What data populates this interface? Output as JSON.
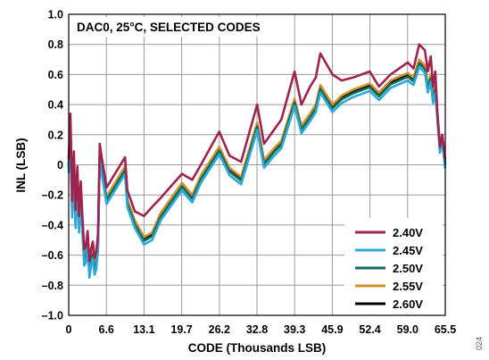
{
  "chart_data": {
    "type": "line",
    "annotation": "DAC0, 25°C, SELECTED CODES",
    "xlabel": "CODE (Thousands LSB)",
    "ylabel": "INL (LSB)",
    "figure_id": "024",
    "xlim": [
      0,
      65.535
    ],
    "ylim": [
      -1.0,
      1.0
    ],
    "grid": true,
    "legend_position": "lower-right",
    "x_ticks": [
      {
        "value": 0,
        "label": "0"
      },
      {
        "value": 6.5535,
        "label": "6.6"
      },
      {
        "value": 13.107,
        "label": "13.1"
      },
      {
        "value": 19.6605,
        "label": "19.7"
      },
      {
        "value": 26.214,
        "label": "26.2"
      },
      {
        "value": 32.7675,
        "label": "32.8"
      },
      {
        "value": 39.321,
        "label": "39.3"
      },
      {
        "value": 45.8745,
        "label": "45.9"
      },
      {
        "value": 52.428,
        "label": "52.4"
      },
      {
        "value": 58.9815,
        "label": "59.0"
      },
      {
        "value": 65.535,
        "label": "65.5"
      }
    ],
    "y_ticks": [
      {
        "value": 1.0,
        "label": "1.0"
      },
      {
        "value": 0.8,
        "label": "0.8"
      },
      {
        "value": 0.6,
        "label": "0.6"
      },
      {
        "value": 0.4,
        "label": "0.4"
      },
      {
        "value": 0.2,
        "label": "0.2"
      },
      {
        "value": 0,
        "label": "0"
      },
      {
        "value": -0.2,
        "label": "–0.2"
      },
      {
        "value": -0.4,
        "label": "–0.4"
      },
      {
        "value": -0.6,
        "label": "–0.6"
      },
      {
        "value": -0.8,
        "label": "–0.8"
      },
      {
        "value": -1.0,
        "label": "–1.0"
      }
    ],
    "series": [
      {
        "name": "2.60V",
        "color": "#000000",
        "offset": -0.03,
        "x": [
          0,
          0.3,
          0.6,
          0.9,
          1.2,
          1.5,
          1.8,
          2.1,
          2.4,
          2.7,
          3.0,
          3.3,
          3.6,
          3.9,
          4.2,
          4.5,
          4.8,
          5.1,
          5.4,
          5.7,
          6.0,
          6.6,
          9.8,
          10.2,
          11.5,
          13.1,
          14.5,
          16.0,
          19.7,
          21.5,
          23.0,
          26.2,
          28.0,
          30.0,
          32.8,
          34.0,
          35.5,
          37.0,
          39.3,
          40.5,
          42.0,
          43.0,
          43.8,
          45.9,
          47.5,
          49.5,
          52.4,
          54.0,
          56.0,
          59.0,
          60.0,
          61.0,
          62.0,
          62.5,
          63.0,
          63.4,
          63.8,
          64.2,
          64.6,
          65.0,
          65.5
        ],
        "y": [
          0.02,
          0.3,
          -0.28,
          0.05,
          -0.35,
          -0.05,
          -0.38,
          -0.15,
          -0.4,
          -0.6,
          -0.58,
          -0.48,
          -0.68,
          -0.6,
          -0.55,
          -0.66,
          -0.62,
          -0.5,
          0.1,
          0.02,
          -0.05,
          -0.19,
          0.01,
          -0.21,
          -0.35,
          -0.46,
          -0.43,
          -0.3,
          -0.1,
          -0.18,
          -0.05,
          0.14,
          0.0,
          -0.06,
          0.3,
          0.05,
          0.12,
          0.18,
          0.46,
          0.28,
          0.36,
          0.42,
          0.55,
          0.42,
          0.48,
          0.52,
          0.56,
          0.5,
          0.58,
          0.63,
          0.6,
          0.72,
          0.68,
          0.55,
          0.62,
          0.48,
          0.55,
          0.35,
          0.15,
          0.22,
          0.05
        ]
      },
      {
        "name": "2.55V",
        "color": "#d4902a",
        "offset": -0.02,
        "x": [
          0,
          0.3,
          0.6,
          0.9,
          1.2,
          1.5,
          1.8,
          2.1,
          2.4,
          2.7,
          3.0,
          3.3,
          3.6,
          3.9,
          4.2,
          4.5,
          4.8,
          5.1,
          5.4,
          5.7,
          6.0,
          6.6,
          9.8,
          10.2,
          11.5,
          13.1,
          14.5,
          16.0,
          19.7,
          21.5,
          23.0,
          26.2,
          28.0,
          30.0,
          32.8,
          34.0,
          35.5,
          37.0,
          39.3,
          40.5,
          42.0,
          43.0,
          43.8,
          45.9,
          47.5,
          49.5,
          52.4,
          54.0,
          56.0,
          59.0,
          60.0,
          61.0,
          62.0,
          62.5,
          63.0,
          63.4,
          63.8,
          64.2,
          64.6,
          65.0,
          65.5
        ],
        "y": [
          0.02,
          0.3,
          -0.28,
          0.05,
          -0.35,
          -0.05,
          -0.38,
          -0.15,
          -0.4,
          -0.6,
          -0.58,
          -0.48,
          -0.68,
          -0.6,
          -0.55,
          -0.66,
          -0.62,
          -0.5,
          0.1,
          0.02,
          -0.05,
          -0.19,
          0.01,
          -0.21,
          -0.35,
          -0.46,
          -0.43,
          -0.3,
          -0.1,
          -0.18,
          -0.05,
          0.14,
          0.0,
          -0.06,
          0.3,
          0.05,
          0.12,
          0.18,
          0.46,
          0.28,
          0.36,
          0.42,
          0.55,
          0.42,
          0.48,
          0.52,
          0.56,
          0.5,
          0.58,
          0.63,
          0.6,
          0.72,
          0.68,
          0.55,
          0.62,
          0.48,
          0.55,
          0.35,
          0.15,
          0.22,
          0.05
        ]
      },
      {
        "name": "2.50V",
        "color": "#0e6e5c",
        "offset": -0.045,
        "x": [
          0,
          0.3,
          0.6,
          0.9,
          1.2,
          1.5,
          1.8,
          2.1,
          2.4,
          2.7,
          3.0,
          3.3,
          3.6,
          3.9,
          4.2,
          4.5,
          4.8,
          5.1,
          5.4,
          5.7,
          6.0,
          6.6,
          9.8,
          10.2,
          11.5,
          13.1,
          14.5,
          16.0,
          19.7,
          21.5,
          23.0,
          26.2,
          28.0,
          30.0,
          32.8,
          34.0,
          35.5,
          37.0,
          39.3,
          40.5,
          42.0,
          43.0,
          43.8,
          45.9,
          47.5,
          49.5,
          52.4,
          54.0,
          56.0,
          59.0,
          60.0,
          61.0,
          62.0,
          62.5,
          63.0,
          63.4,
          63.8,
          64.2,
          64.6,
          65.0,
          65.5
        ],
        "y": [
          0.02,
          0.3,
          -0.28,
          0.05,
          -0.35,
          -0.05,
          -0.38,
          -0.15,
          -0.4,
          -0.6,
          -0.58,
          -0.48,
          -0.68,
          -0.6,
          -0.55,
          -0.66,
          -0.62,
          -0.5,
          0.1,
          0.02,
          -0.05,
          -0.19,
          0.01,
          -0.21,
          -0.35,
          -0.46,
          -0.43,
          -0.3,
          -0.1,
          -0.18,
          -0.05,
          0.14,
          0.0,
          -0.06,
          0.3,
          0.05,
          0.12,
          0.18,
          0.46,
          0.28,
          0.36,
          0.42,
          0.55,
          0.42,
          0.48,
          0.52,
          0.56,
          0.5,
          0.58,
          0.63,
          0.6,
          0.72,
          0.68,
          0.55,
          0.62,
          0.48,
          0.55,
          0.35,
          0.15,
          0.22,
          0.05
        ]
      },
      {
        "name": "2.45V",
        "color": "#2ea8d8",
        "offset": -0.07,
        "x": [
          0,
          0.3,
          0.6,
          0.9,
          1.2,
          1.5,
          1.8,
          2.1,
          2.4,
          2.7,
          3.0,
          3.3,
          3.6,
          3.9,
          4.2,
          4.5,
          4.8,
          5.1,
          5.4,
          5.7,
          6.0,
          6.6,
          9.8,
          10.2,
          11.5,
          13.1,
          14.5,
          16.0,
          19.7,
          21.5,
          23.0,
          26.2,
          28.0,
          30.0,
          32.8,
          34.0,
          35.5,
          37.0,
          39.3,
          40.5,
          42.0,
          43.0,
          43.8,
          45.9,
          47.5,
          49.5,
          52.4,
          54.0,
          56.0,
          59.0,
          60.0,
          61.0,
          62.0,
          62.5,
          63.0,
          63.4,
          63.8,
          64.2,
          64.6,
          65.0,
          65.5
        ],
        "y": [
          0.02,
          0.3,
          -0.28,
          0.05,
          -0.35,
          -0.05,
          -0.38,
          -0.15,
          -0.4,
          -0.6,
          -0.58,
          -0.48,
          -0.68,
          -0.6,
          -0.55,
          -0.66,
          -0.62,
          -0.5,
          0.1,
          0.02,
          -0.05,
          -0.19,
          0.01,
          -0.21,
          -0.35,
          -0.46,
          -0.43,
          -0.3,
          -0.1,
          -0.18,
          -0.05,
          0.14,
          0.0,
          -0.06,
          0.3,
          0.05,
          0.12,
          0.18,
          0.46,
          0.28,
          0.36,
          0.42,
          0.55,
          0.42,
          0.48,
          0.52,
          0.56,
          0.5,
          0.58,
          0.63,
          0.6,
          0.72,
          0.68,
          0.55,
          0.62,
          0.48,
          0.55,
          0.35,
          0.15,
          0.22,
          0.05
        ]
      },
      {
        "name": "2.40V",
        "color": "#a0234f",
        "offset": 0.02,
        "x": [
          0,
          0.3,
          0.6,
          0.9,
          1.2,
          1.5,
          1.8,
          2.1,
          2.4,
          2.7,
          3.0,
          3.3,
          3.6,
          3.9,
          4.2,
          4.5,
          4.8,
          5.1,
          5.4,
          5.7,
          6.0,
          6.6,
          9.8,
          10.2,
          11.5,
          13.1,
          14.5,
          16.0,
          19.7,
          21.5,
          23.0,
          26.2,
          28.0,
          30.0,
          32.8,
          34.0,
          35.5,
          37.0,
          39.3,
          40.5,
          42.0,
          43.0,
          43.8,
          45.9,
          47.5,
          49.5,
          52.4,
          54.0,
          56.0,
          59.0,
          60.0,
          61.0,
          62.0,
          62.5,
          63.0,
          63.4,
          63.8,
          64.2,
          64.6,
          65.0,
          65.5
        ],
        "y": [
          0.02,
          0.32,
          -0.26,
          0.07,
          -0.32,
          -0.03,
          -0.36,
          -0.13,
          -0.38,
          -0.58,
          -0.56,
          -0.46,
          -0.66,
          -0.58,
          -0.53,
          -0.64,
          -0.6,
          -0.48,
          0.12,
          0.04,
          -0.03,
          -0.17,
          0.03,
          -0.19,
          -0.33,
          -0.36,
          -0.3,
          -0.24,
          -0.08,
          -0.12,
          -0.02,
          0.2,
          0.04,
          0.0,
          0.38,
          0.12,
          0.2,
          0.28,
          0.6,
          0.38,
          0.5,
          0.56,
          0.72,
          0.58,
          0.54,
          0.56,
          0.6,
          0.5,
          0.58,
          0.66,
          0.62,
          0.78,
          0.74,
          0.6,
          0.7,
          0.5,
          0.6,
          0.3,
          0.1,
          0.18,
          0.02
        ]
      }
    ]
  }
}
